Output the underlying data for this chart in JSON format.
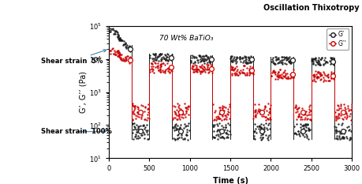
{
  "title": "Oscillation Thixotropy",
  "subtitle": "70 Wt% BaTiO₃",
  "xlabel": "Time (s)",
  "ylabel": "G’, G’’ (Pa)",
  "xlim": [
    0,
    3000
  ],
  "ylim": [
    10,
    100000
  ],
  "legend_G_prime": "G’",
  "legend_G_dprime": "G’’",
  "annotation_high": "Shear strain  5%",
  "annotation_low": "Shear strain  100%",
  "G_prime_color": "#1a1a1a",
  "G_dprime_color": "#cc0000",
  "cycle_period": 500,
  "high_strain_duration": 280,
  "low_strain_duration": 220,
  "num_cycles": 6,
  "G_prime_high_vals": [
    20000,
    11000,
    10000,
    9500,
    9000,
    8500
  ],
  "G_prime_first_peak": 80000,
  "G_dprime_first_peak": 18000,
  "G_dprime_high_vals": [
    9000,
    5500,
    5000,
    4500,
    3500,
    3000
  ],
  "G_prime_low_val": 65,
  "G_dprime_low_val": 250,
  "G_prime_low_scatter": 0.25,
  "G_dprime_low_scatter": 0.25,
  "G_prime_high_scatter": 0.12,
  "G_dprime_high_scatter": 0.15
}
